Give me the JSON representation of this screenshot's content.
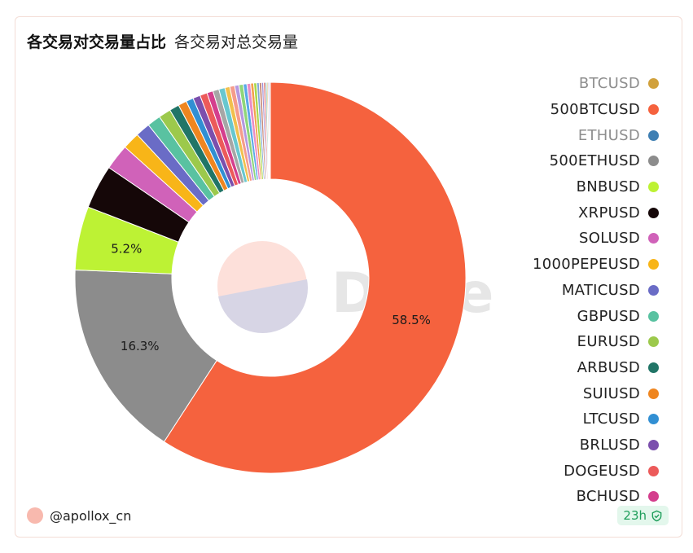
{
  "header": {
    "title": "各交易对交易量占比",
    "subtitle": "各交易对总交易量"
  },
  "watermark": "Dune",
  "footer": {
    "user": "@apollox_cn",
    "badge": "23h"
  },
  "colors": {
    "accent": "#f5623e",
    "badge_bg": "#e3f7ec",
    "badge_fg": "#1f9e5b"
  },
  "chart_data": {
    "type": "pie",
    "donut": true,
    "title": "各交易对交易量占比",
    "subtitle": "各交易对总交易量",
    "legend_position": "right",
    "slices": [
      {
        "name": "500BTCUSD",
        "value": 58.5,
        "color": "#f5623e",
        "label": "58.5%"
      },
      {
        "name": "500ETHUSD",
        "value": 16.3,
        "color": "#8c8c8c",
        "label": "16.3%"
      },
      {
        "name": "BNBUSD",
        "value": 5.2,
        "color": "#bdf234",
        "label": "5.2%"
      },
      {
        "name": "XRPUSD",
        "value": 3.6,
        "color": "#150708"
      },
      {
        "name": "SOLUSD",
        "value": 2.1,
        "color": "#d062b9"
      },
      {
        "name": "1000PEPEUSD",
        "value": 1.4,
        "color": "#f8b518"
      },
      {
        "name": "MATICUSD",
        "value": 1.2,
        "color": "#6a6cc6"
      },
      {
        "name": "GBPUSD",
        "value": 1.1,
        "color": "#59c2a1"
      },
      {
        "name": "EURUSD",
        "value": 1.0,
        "color": "#9cc94c"
      },
      {
        "name": "ARBUSD",
        "value": 0.8,
        "color": "#217567"
      },
      {
        "name": "SUIUSD",
        "value": 0.7,
        "color": "#ef8620"
      },
      {
        "name": "LTCUSD",
        "value": 0.6,
        "color": "#318fd3"
      },
      {
        "name": "BRLUSD",
        "value": 0.6,
        "color": "#7b4fad"
      },
      {
        "name": "DOGEUSD",
        "value": 0.6,
        "color": "#ec5a5a"
      },
      {
        "name": "BCHUSD",
        "value": 0.5,
        "color": "#d43e8d"
      },
      {
        "name": "",
        "value": 0.5,
        "color": "#a6a6a6"
      },
      {
        "name": "",
        "value": 0.5,
        "color": "#68c7cf"
      },
      {
        "name": "",
        "value": 0.4,
        "color": "#f1c04d"
      },
      {
        "name": "",
        "value": 0.4,
        "color": "#f59c8b"
      },
      {
        "name": "",
        "value": 0.35,
        "color": "#b599e0"
      },
      {
        "name": "",
        "value": 0.35,
        "color": "#8fd67a"
      },
      {
        "name": "",
        "value": 0.3,
        "color": "#5aa8e8"
      },
      {
        "name": "",
        "value": 0.3,
        "color": "#e98cc6"
      },
      {
        "name": "",
        "value": 0.25,
        "color": "#f3a04a"
      },
      {
        "name": "",
        "value": 0.25,
        "color": "#a8d84b"
      },
      {
        "name": "",
        "value": 0.2,
        "color": "#7fa7d9"
      },
      {
        "name": "",
        "value": 0.2,
        "color": "#c98b7b"
      },
      {
        "name": "",
        "value": 0.15,
        "color": "#9b8ad6"
      },
      {
        "name": "",
        "value": 0.15,
        "color": "#e06a6a"
      },
      {
        "name": "",
        "value": 0.12,
        "color": "#66b3a0"
      },
      {
        "name": "",
        "value": 0.1,
        "color": "#d4b04a"
      },
      {
        "name": "",
        "value": 0.1,
        "color": "#8a6fc0"
      },
      {
        "name": "",
        "value": 0.08,
        "color": "#c0c0c0"
      }
    ],
    "legend": [
      {
        "name": "BTCUSD",
        "color": "#d1a13c",
        "dim": true
      },
      {
        "name": "500BTCUSD",
        "color": "#f5623e",
        "dim": false
      },
      {
        "name": "ETHUSD",
        "color": "#3f7fb3",
        "dim": true
      },
      {
        "name": "500ETHUSD",
        "color": "#8c8c8c",
        "dim": false
      },
      {
        "name": "BNBUSD",
        "color": "#bdf234",
        "dim": false
      },
      {
        "name": "XRPUSD",
        "color": "#150708",
        "dim": false
      },
      {
        "name": "SOLUSD",
        "color": "#d062b9",
        "dim": false
      },
      {
        "name": "1000PEPEUSD",
        "color": "#f8b518",
        "dim": false
      },
      {
        "name": "MATICUSD",
        "color": "#6a6cc6",
        "dim": false
      },
      {
        "name": "GBPUSD",
        "color": "#59c2a1",
        "dim": false
      },
      {
        "name": "EURUSD",
        "color": "#9cc94c",
        "dim": false
      },
      {
        "name": "ARBUSD",
        "color": "#217567",
        "dim": false
      },
      {
        "name": "SUIUSD",
        "color": "#ef8620",
        "dim": false
      },
      {
        "name": "LTCUSD",
        "color": "#318fd3",
        "dim": false
      },
      {
        "name": "BRLUSD",
        "color": "#7b4fad",
        "dim": false
      },
      {
        "name": "DOGEUSD",
        "color": "#ec5a5a",
        "dim": false
      },
      {
        "name": "BCHUSD",
        "color": "#d43e8d",
        "dim": false
      }
    ]
  }
}
